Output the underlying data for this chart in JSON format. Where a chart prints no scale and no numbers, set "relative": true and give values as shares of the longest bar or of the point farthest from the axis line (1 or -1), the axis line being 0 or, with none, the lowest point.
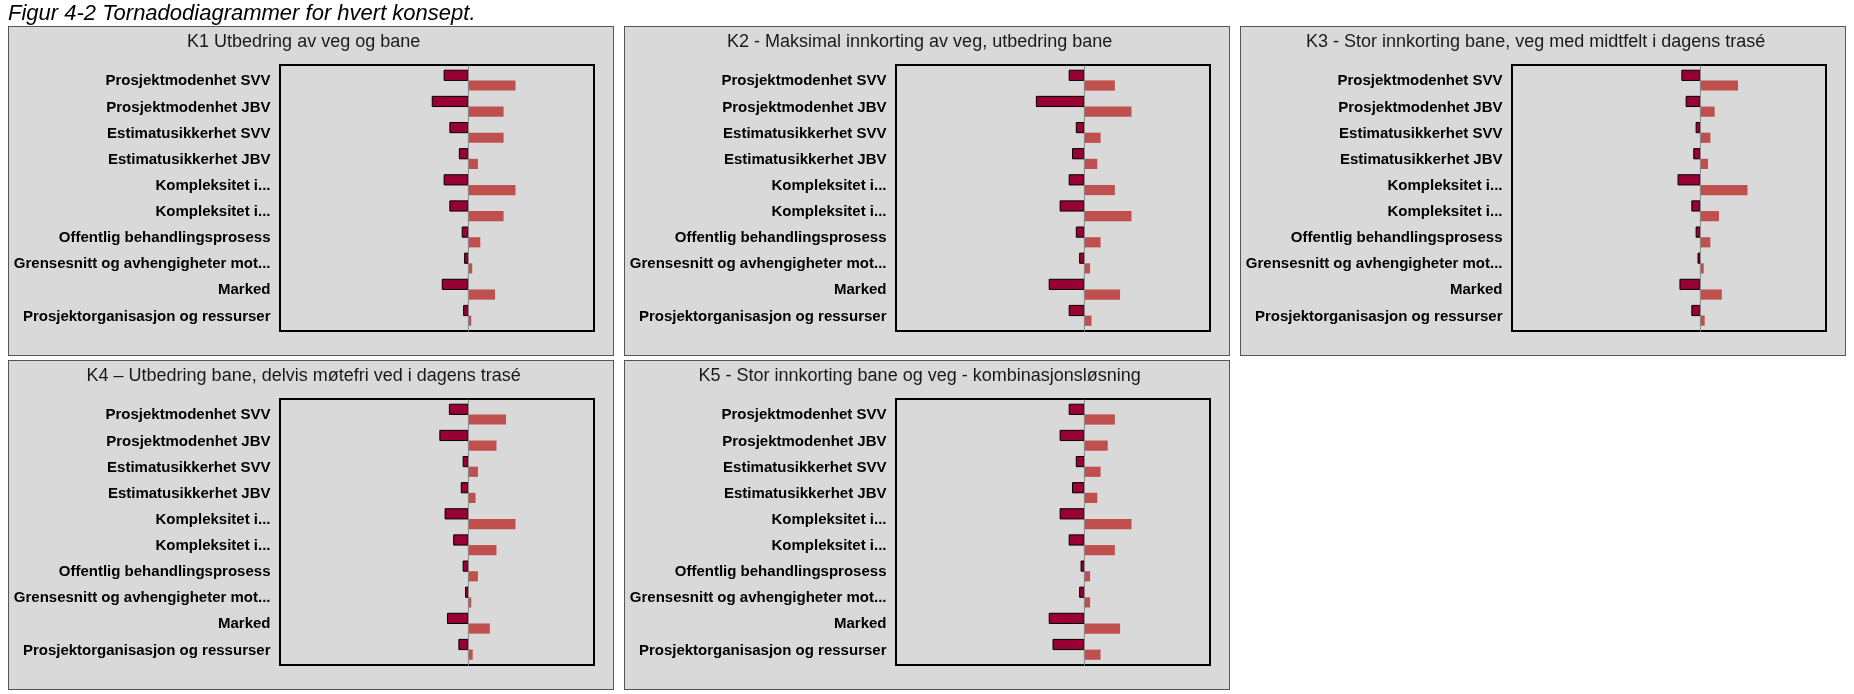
{
  "chart_data": [
    {
      "type": "bar",
      "orientation": "horizontal",
      "relative": true,
      "title": "K1 Utbedring av veg og bane",
      "annotations": [
        "Figur 4-2 Tornadodiagrammer for hvert konsept."
      ],
      "categories": [
        "Prosjektmodenhet SVV",
        "Prosjektmodenhet JBV",
        "Estimatusikkerhet SVV",
        "Estimatusikkerhet JBV",
        "Kompleksitet i...",
        "Kompleksitet i...",
        "Offentlig behandlingsprosess",
        "Grensesnitt og avhengigheter mot...",
        "Marked",
        "Prosjektorganisasjon og ressurser"
      ],
      "series": [
        {
          "color": "#990033",
          "values": [
            -0.5,
            -0.75,
            -0.38,
            -0.18,
            -0.5,
            -0.38,
            -0.12,
            -0.07,
            -0.54,
            -0.09
          ]
        },
        {
          "color": "#c0504d",
          "values": [
            1.0,
            0.75,
            0.75,
            0.21,
            1.0,
            0.75,
            0.26,
            0.09,
            0.57,
            0.07
          ]
        }
      ]
    },
    {
      "type": "bar",
      "orientation": "horizontal",
      "relative": true,
      "title": "K2 - Maksimal innkorting av veg, utbedring bane",
      "categories": [
        "Prosjektmodenhet SVV",
        "Prosjektmodenhet JBV",
        "Estimatusikkerhet SVV",
        "Estimatusikkerhet JBV",
        "Kompleksitet i...",
        "Kompleksitet i...",
        "Offentlig behandlingsprosess",
        "Grensesnitt og avhengigheter mot...",
        "Marked",
        "Prosjektorganisasjon og ressurser"
      ],
      "series": [
        {
          "color": "#990033",
          "values": [
            -0.31,
            -1.0,
            -0.16,
            -0.24,
            -0.31,
            -0.5,
            -0.16,
            -0.09,
            -0.73,
            -0.31
          ]
        },
        {
          "color": "#c0504d",
          "values": [
            0.65,
            1.0,
            0.35,
            0.28,
            0.65,
            1.0,
            0.35,
            0.13,
            0.76,
            0.16
          ]
        }
      ]
    },
    {
      "type": "bar",
      "orientation": "horizontal",
      "relative": true,
      "title": "K3 - Stor innkorting bane, veg med midtfelt i dagens trasé",
      "categories": [
        "Prosjektmodenhet SVV",
        "Prosjektmodenhet JBV",
        "Estimatusikkerhet SVV",
        "Estimatusikkerhet JBV",
        "Kompleksitet i...",
        "Kompleksitet i...",
        "Offentlig behandlingsprosess",
        "Grensesnitt og avhengigheter mot...",
        "Marked",
        "Prosjektorganisasjon og ressurser"
      ],
      "series": [
        {
          "color": "#990033",
          "values": [
            -0.38,
            -0.29,
            -0.08,
            -0.13,
            -0.46,
            -0.17,
            -0.08,
            -0.04,
            -0.42,
            -0.17
          ]
        },
        {
          "color": "#c0504d",
          "values": [
            0.8,
            0.31,
            0.22,
            0.17,
            1.0,
            0.4,
            0.22,
            0.08,
            0.46,
            0.1
          ]
        }
      ]
    },
    {
      "type": "bar",
      "orientation": "horizontal",
      "relative": true,
      "title": "K4 – Utbedring bane, delvis møtefri ved i dagens trasé",
      "categories": [
        "Prosjektmodenhet SVV",
        "Prosjektmodenhet JBV",
        "Estimatusikkerhet SVV",
        "Estimatusikkerhet JBV",
        "Kompleksitet i...",
        "Kompleksitet i...",
        "Offentlig behandlingsprosess",
        "Grensesnitt og avhengigheter mot...",
        "Marked",
        "Prosjektorganisasjon og ressurser"
      ],
      "series": [
        {
          "color": "#990033",
          "values": [
            -0.39,
            -0.59,
            -0.1,
            -0.14,
            -0.48,
            -0.3,
            -0.1,
            -0.05,
            -0.43,
            -0.19
          ]
        },
        {
          "color": "#c0504d",
          "values": [
            0.8,
            0.6,
            0.21,
            0.16,
            1.0,
            0.6,
            0.21,
            0.07,
            0.46,
            0.1
          ]
        }
      ]
    },
    {
      "type": "bar",
      "orientation": "horizontal",
      "relative": true,
      "title": "K5 - Stor innkorting bane og veg - kombinasjonsløsning",
      "categories": [
        "Prosjektmodenhet SVV",
        "Prosjektmodenhet JBV",
        "Estimatusikkerhet SVV",
        "Estimatusikkerhet JBV",
        "Kompleksitet i...",
        "Kompleksitet i...",
        "Offentlig behandlingsprosess",
        "Grensesnitt og avhengigheter mot...",
        "Marked",
        "Prosjektorganisasjon og ressurser"
      ],
      "series": [
        {
          "color": "#990033",
          "values": [
            -0.31,
            -0.5,
            -0.16,
            -0.24,
            -0.5,
            -0.31,
            -0.06,
            -0.09,
            -0.73,
            -0.65
          ]
        },
        {
          "color": "#c0504d",
          "values": [
            0.65,
            0.5,
            0.35,
            0.28,
            1.0,
            0.65,
            0.13,
            0.13,
            0.76,
            0.35
          ]
        }
      ]
    }
  ]
}
